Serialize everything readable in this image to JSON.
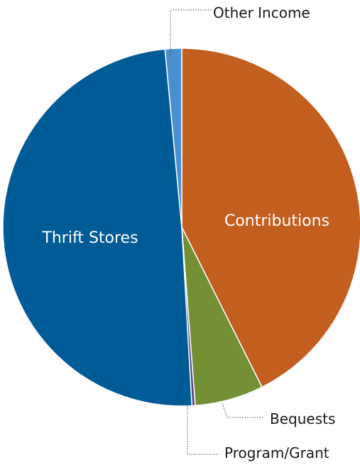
{
  "chart_data": {
    "type": "pie",
    "slices": [
      {
        "label": "Contributions",
        "value": 42.6,
        "color": "#c45e1f",
        "label_position": "inside"
      },
      {
        "label": "Bequests",
        "value": 6.2,
        "color": "#739035",
        "label_position": "outside"
      },
      {
        "label": "Program/Grant",
        "value": 0.3,
        "color": "#5b4a8a",
        "label_position": "outside"
      },
      {
        "label": "Thrift Stores",
        "value": 49.4,
        "color": "#005b96",
        "label_position": "inside"
      },
      {
        "label": "Other Income",
        "value": 1.5,
        "color": "#4a90d0",
        "label_position": "outside"
      }
    ],
    "start_angle": "top",
    "direction": "clockwise",
    "legend": "none"
  }
}
